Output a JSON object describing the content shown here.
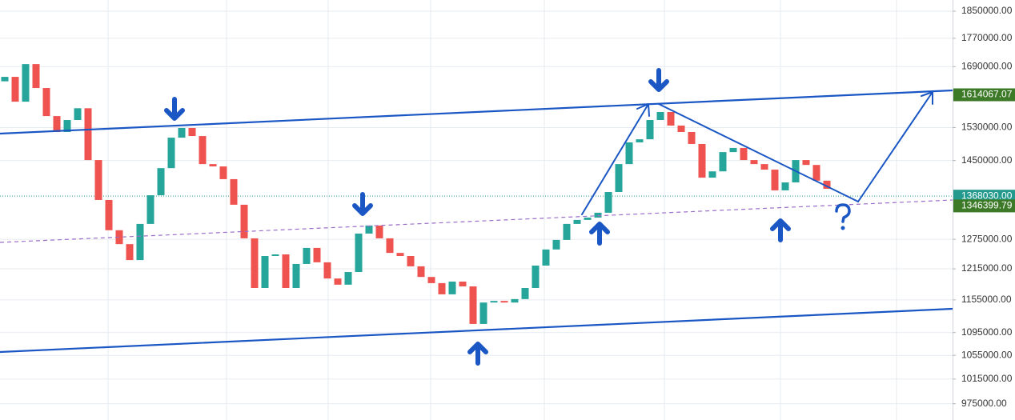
{
  "chart_data": {
    "type": "candlestick",
    "log_scale": true,
    "grid": true,
    "up_color": "#26a69a",
    "down_color": "#ef5350",
    "ylim": [
      949400,
      1884100
    ],
    "yticks": [
      {
        "value": 1850000,
        "label": "1850000.00"
      },
      {
        "value": 1770000,
        "label": "1770000.00"
      },
      {
        "value": 1690000,
        "label": "1690000.00"
      },
      {
        "value": 1530000,
        "label": "1530000.00"
      },
      {
        "value": 1450000,
        "label": "1450000.00"
      },
      {
        "value": 1275000,
        "label": "1275000.00"
      },
      {
        "value": 1215000,
        "label": "1215000.00"
      },
      {
        "value": 1155000,
        "label": "1155000.00"
      },
      {
        "value": 1095000,
        "label": "1095000.00"
      },
      {
        "value": 1055000,
        "label": "1055000.00"
      },
      {
        "value": 1015000,
        "label": "1015000.00"
      },
      {
        "value": 975000,
        "label": "975000.00"
      }
    ],
    "price_labels": [
      {
        "value": 1614067.07,
        "label": "1614067.07",
        "color": "#3d7a28"
      },
      {
        "value": 1368030,
        "label": "1368030.00",
        "color": "#22998c"
      },
      {
        "value": 1346399.79,
        "label": "1346399.79",
        "color": "#3d7a28"
      }
    ],
    "open": [
      1650000,
      1662000,
      1596000,
      1697000,
      1632000,
      1559000,
      1519000,
      1549000,
      1579000,
      1451000,
      1359500,
      1294000,
      1265000,
      1232500,
      1307400,
      1370000,
      1432000,
      1505000,
      1529000,
      1509000,
      1441500,
      1436000,
      1406500,
      1349000,
      1277000,
      1177600,
      1240700,
      1244000,
      1177600,
      1224700,
      1257200,
      1228000,
      1196000,
      1184000,
      1208700,
      1287000,
      1304000,
      1277000,
      1247000,
      1240700,
      1220000,
      1199000,
      1187000,
      1165500,
      1190000,
      1180700,
      1110500,
      1150000,
      1153000,
      1150000,
      1156500,
      1177600,
      1221500,
      1254000,
      1273700,
      1307400,
      1316000,
      1321000,
      1331500,
      1377300,
      1441500,
      1493500,
      1501000,
      1549000,
      1569400,
      1535000,
      1519000,
      1489600,
      1410000,
      1424500,
      1470000,
      1480000,
      1451000,
      1441500,
      1428500,
      1381000,
      1399000,
      1451000,
      1439500,
      1403000
    ],
    "close": [
      1662000,
      1596000,
      1697000,
      1632000,
      1559000,
      1519000,
      1549000,
      1579000,
      1451000,
      1359500,
      1294000,
      1265000,
      1232500,
      1307400,
      1370000,
      1432000,
      1505000,
      1529000,
      1509000,
      1441500,
      1436000,
      1406500,
      1349000,
      1277000,
      1177600,
      1240700,
      1244000,
      1177600,
      1224700,
      1257200,
      1228000,
      1196000,
      1184000,
      1208700,
      1287000,
      1304000,
      1277000,
      1247000,
      1240700,
      1220000,
      1199000,
      1187000,
      1165500,
      1190000,
      1180700,
      1110500,
      1150000,
      1153000,
      1150000,
      1156500,
      1177600,
      1221500,
      1254000,
      1273700,
      1307400,
      1316000,
      1321000,
      1331500,
      1377300,
      1441500,
      1493500,
      1501000,
      1549000,
      1569400,
      1535000,
      1519000,
      1489600,
      1410000,
      1424500,
      1470000,
      1480000,
      1451000,
      1441500,
      1428500,
      1381000,
      1399000,
      1451000,
      1439500,
      1403000,
      1384500
    ]
  }
}
